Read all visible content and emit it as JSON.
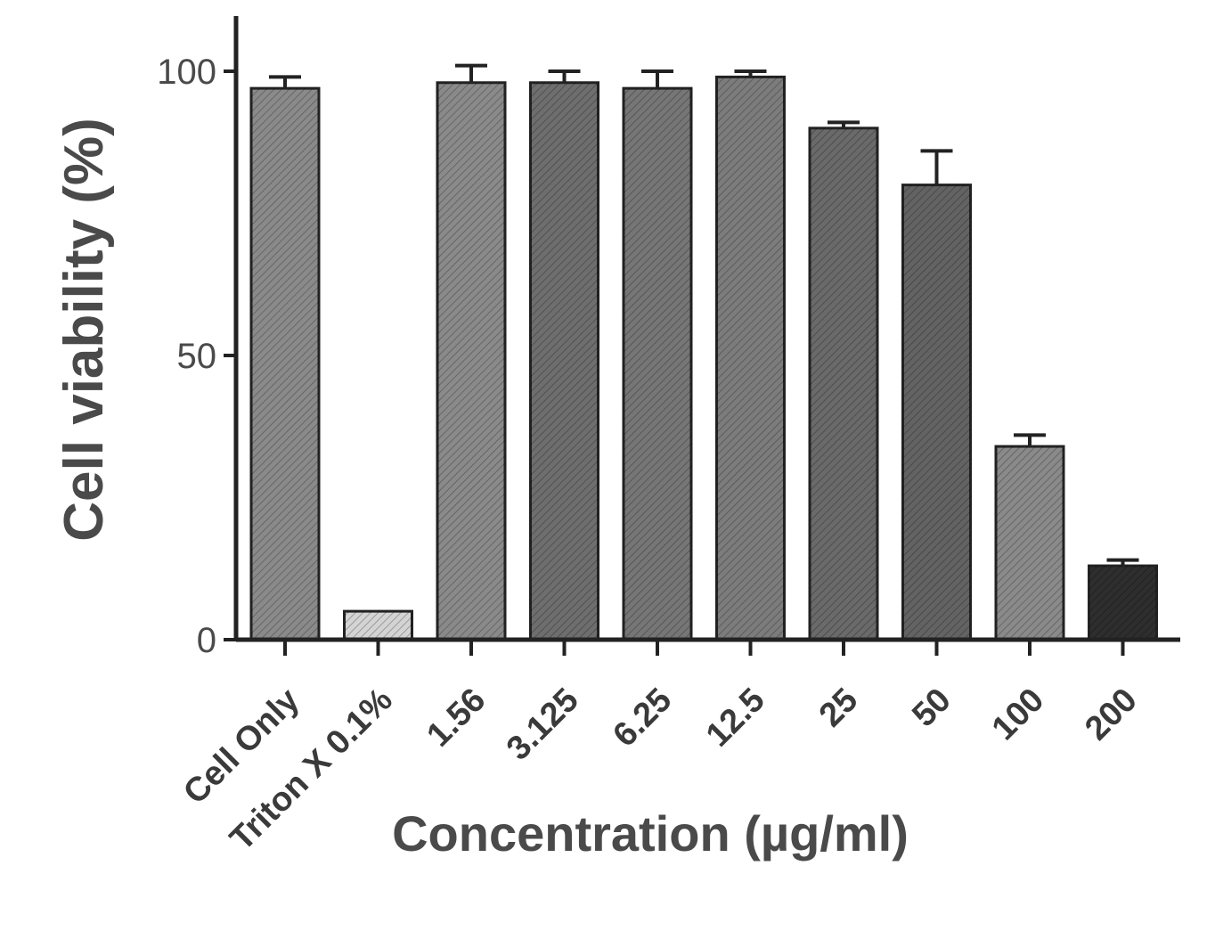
{
  "chart_data": {
    "type": "bar",
    "title": "",
    "xlabel": "Concentration (µg/ml)",
    "ylabel": "Cell viability (%)",
    "ylim": [
      0,
      100
    ],
    "yticks": [
      0,
      50,
      100
    ],
    "grid": false,
    "categories": [
      "Cell Only",
      "Triton X 0.1%",
      "1.56",
      "3.125",
      "6.25",
      "12.5",
      "25",
      "50",
      "100",
      "200"
    ],
    "values": [
      97,
      5,
      98,
      98,
      97,
      99,
      90,
      80,
      34,
      13
    ],
    "errors": [
      2,
      0,
      3,
      2,
      3,
      1,
      1,
      6,
      2,
      1
    ],
    "colors": [
      "#8a8a8a",
      "#d4d4d4",
      "#8a8a8a",
      "#6e6e6e",
      "#767676",
      "#7c7c7c",
      "#6a6a6a",
      "#636363",
      "#8a8a8a",
      "#2e2e2e"
    ]
  }
}
